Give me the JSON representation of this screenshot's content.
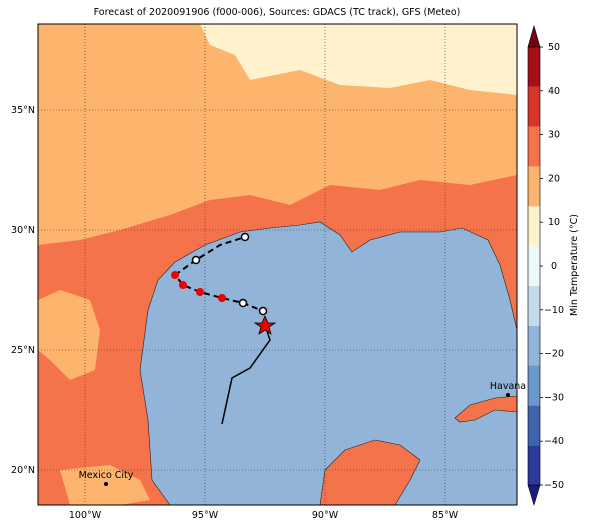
{
  "title": "Forecast of 2020091906 (f000-006), Sources: GDACS (TC track), GFS (Meteo)",
  "map": {
    "lon_labels": [
      "100°W",
      "95°W",
      "90°W",
      "85°W"
    ],
    "lat_labels": [
      "20°N",
      "25°N",
      "30°N",
      "35°N"
    ],
    "cities": [
      "Mexico City",
      "Havana"
    ]
  },
  "colorbar": {
    "label": "Min Temperature (°C)",
    "ticks": [
      {
        "value": -50,
        "label": "−50"
      },
      {
        "value": -40,
        "label": "−40"
      },
      {
        "value": -30,
        "label": "−30"
      },
      {
        "value": -20,
        "label": "−20"
      },
      {
        "value": -10,
        "label": "−10"
      },
      0,
      10,
      20,
      30,
      40,
      50
    ],
    "colors": [
      "#1a1a80",
      "#2b3a9c",
      "#3f63ad",
      "#6a98c8",
      "#92b4d9",
      "#c4dbec",
      "#eef7fa",
      "#fff2cc",
      "#fdb46c",
      "#f4734a",
      "#d7352a",
      "#a50f15",
      "#7a0010"
    ]
  }
}
